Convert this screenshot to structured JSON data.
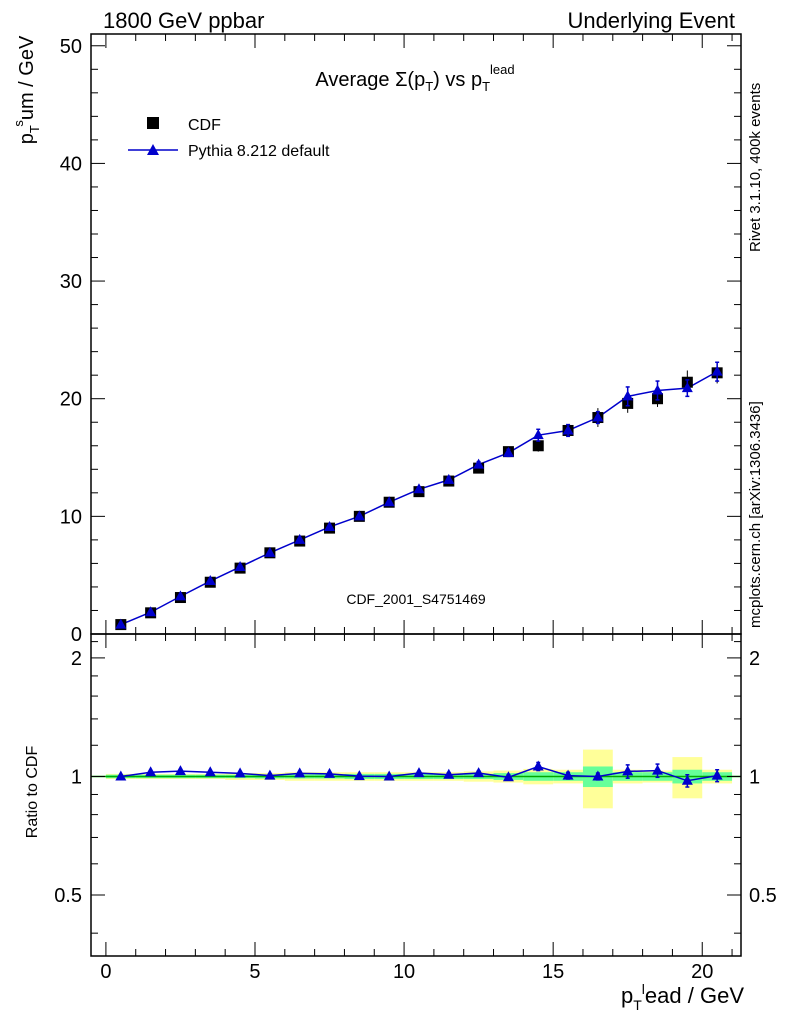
{
  "header": {
    "left": "1800 GeV ppbar",
    "right": "Underlying Event"
  },
  "side_labels": {
    "rivet": "Rivet 3.1.10,  400k events",
    "mcplots": "mcplots.cern.ch [arXiv:1306.3436]"
  },
  "chart_data": [
    {
      "type": "scatter",
      "title": "Average Σ(p_T) vs p_T^lead",
      "watermark": "CDF_2001_S4751469",
      "ylabel": "p_T^sum / GeV",
      "xlim": [
        -0.5,
        21.3
      ],
      "ylim": [
        0,
        51
      ],
      "legend_position": "top-left",
      "x": [
        0.5,
        1.5,
        2.5,
        3.5,
        4.5,
        5.5,
        6.5,
        7.5,
        8.5,
        9.5,
        10.5,
        11.5,
        12.5,
        13.5,
        14.5,
        15.5,
        16.5,
        17.5,
        18.5,
        19.5,
        20.5
      ],
      "series": [
        {
          "name": "CDF",
          "marker": "square",
          "color": "#000000",
          "values": [
            0.8,
            1.8,
            3.1,
            4.4,
            5.6,
            6.9,
            7.9,
            9.0,
            10.0,
            11.2,
            12.1,
            13.0,
            14.1,
            15.5,
            16.0,
            17.3,
            18.4,
            19.6,
            20.0,
            21.4,
            22.2
          ],
          "errors": [
            0.05,
            0.05,
            0.06,
            0.08,
            0.1,
            0.12,
            0.15,
            0.15,
            0.2,
            0.2,
            0.25,
            0.3,
            0.3,
            0.4,
            0.5,
            0.5,
            0.8,
            0.8,
            0.7,
            1.0,
            0.9
          ]
        },
        {
          "name": "Pythia 8.212 default",
          "marker": "triangle",
          "color": "#0000cc",
          "values": [
            0.8,
            1.85,
            3.2,
            4.5,
            5.7,
            6.9,
            8.0,
            9.1,
            10.0,
            11.2,
            12.3,
            13.1,
            14.4,
            15.4,
            16.9,
            17.3,
            18.4,
            20.2,
            20.7,
            20.9,
            22.3
          ],
          "errors": [
            0.05,
            0.05,
            0.06,
            0.08,
            0.1,
            0.1,
            0.12,
            0.12,
            0.15,
            0.15,
            0.2,
            0.25,
            0.25,
            0.3,
            0.5,
            0.5,
            0.5,
            0.8,
            0.8,
            0.7,
            0.8
          ]
        }
      ],
      "y_ticks": [
        0,
        10,
        20,
        30,
        40,
        50
      ]
    },
    {
      "type": "line",
      "xlabel": "p_T^lead / GeV",
      "ylabel": "Ratio to CDF",
      "xlim": [
        -0.5,
        21.3
      ],
      "ylim": [
        0.35,
        2.3
      ],
      "x_ticks": [
        0,
        5,
        10,
        15,
        20
      ],
      "y_ticks": [
        0.5,
        1,
        2
      ],
      "bins": [
        [
          0,
          1
        ],
        [
          1,
          2
        ],
        [
          2,
          3
        ],
        [
          3,
          4
        ],
        [
          4,
          5
        ],
        [
          5,
          6
        ],
        [
          6,
          7
        ],
        [
          7,
          8
        ],
        [
          8,
          9
        ],
        [
          9,
          10
        ],
        [
          10,
          11
        ],
        [
          11,
          12
        ],
        [
          12,
          13
        ],
        [
          13,
          14
        ],
        [
          14,
          15
        ],
        [
          15,
          16
        ],
        [
          16,
          17
        ],
        [
          17,
          18
        ],
        [
          18,
          19
        ],
        [
          19,
          20
        ],
        [
          20,
          21
        ]
      ],
      "band_green": [
        0.01,
        0.01,
        0.01,
        0.01,
        0.01,
        0.012,
        0.012,
        0.012,
        0.015,
        0.015,
        0.015,
        0.015,
        0.015,
        0.02,
        0.025,
        0.025,
        0.06,
        0.025,
        0.025,
        0.04,
        0.025
      ],
      "band_yellow": [
        0.015,
        0.015,
        0.015,
        0.015,
        0.02,
        0.02,
        0.025,
        0.025,
        0.025,
        0.025,
        0.025,
        0.025,
        0.03,
        0.035,
        0.045,
        0.04,
        0.17,
        0.04,
        0.035,
        0.12,
        0.04
      ],
      "series": [
        {
          "name": "Pythia 8.212 default",
          "color": "#0000cc",
          "values": [
            1.0,
            1.025,
            1.032,
            1.025,
            1.018,
            1.005,
            1.018,
            1.015,
            1.002,
            1.0,
            1.02,
            1.01,
            1.02,
            0.995,
            1.06,
            1.005,
            1.0,
            1.03,
            1.035,
            0.975,
            1.005
          ],
          "errors": [
            0.005,
            0.005,
            0.005,
            0.006,
            0.006,
            0.007,
            0.007,
            0.008,
            0.008,
            0.01,
            0.01,
            0.012,
            0.012,
            0.015,
            0.025,
            0.02,
            0.02,
            0.04,
            0.04,
            0.035,
            0.035
          ]
        }
      ]
    }
  ],
  "colors": {
    "band_green": "#66ff99",
    "band_yellow": "#ffff99",
    "reference_line": "#00aa00",
    "grey_text": "#888888"
  }
}
